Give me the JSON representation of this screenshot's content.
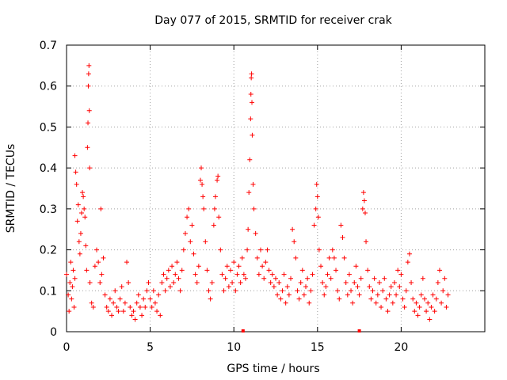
{
  "chart_data": {
    "type": "scatter",
    "title": "Day 077 of 2015, SRMTID for receiver crak",
    "xlabel": "GPS time / hours",
    "ylabel": "SRMTID / TECUs",
    "xlim": [
      0,
      25
    ],
    "ylim": [
      0,
      0.7
    ],
    "grid": true,
    "marker": "+",
    "color": "#ff0000",
    "x_ticks": [
      0,
      5,
      10,
      15,
      20
    ],
    "x_tick_labels": [
      "0",
      "5",
      "10",
      "15",
      "20"
    ],
    "y_ticks": [
      0,
      0.1,
      0.2,
      0.3,
      0.4,
      0.5,
      0.6,
      0.7
    ],
    "y_tick_labels": [
      "0",
      "0.1",
      "0.2",
      "0.3",
      "0.4",
      "0.5",
      "0.6",
      "0.7"
    ],
    "series": [
      {
        "name": "SRMTID",
        "points": [
          [
            0.0,
            0.14
          ],
          [
            0.1,
            0.09
          ],
          [
            0.15,
            0.05
          ],
          [
            0.2,
            0.12
          ],
          [
            0.25,
            0.17
          ],
          [
            0.3,
            0.08
          ],
          [
            0.35,
            0.11
          ],
          [
            0.4,
            0.15
          ],
          [
            0.45,
            0.06
          ],
          [
            0.5,
            0.13
          ],
          [
            0.5,
            0.43
          ],
          [
            0.55,
            0.39
          ],
          [
            0.6,
            0.36
          ],
          [
            0.65,
            0.27
          ],
          [
            0.7,
            0.31
          ],
          [
            0.75,
            0.22
          ],
          [
            0.8,
            0.19
          ],
          [
            0.85,
            0.24
          ],
          [
            0.9,
            0.29
          ],
          [
            0.95,
            0.34
          ],
          [
            1.0,
            0.33
          ],
          [
            1.05,
            0.3
          ],
          [
            1.1,
            0.28
          ],
          [
            1.15,
            0.21
          ],
          [
            1.2,
            0.15
          ],
          [
            1.25,
            0.45
          ],
          [
            1.28,
            0.51
          ],
          [
            1.3,
            0.6
          ],
          [
            1.32,
            0.63
          ],
          [
            1.34,
            0.65
          ],
          [
            1.36,
            0.54
          ],
          [
            1.38,
            0.4
          ],
          [
            1.4,
            0.12
          ],
          [
            1.5,
            0.07
          ],
          [
            1.6,
            0.06
          ],
          [
            1.7,
            0.16
          ],
          [
            1.8,
            0.2
          ],
          [
            1.9,
            0.17
          ],
          [
            2.0,
            0.12
          ],
          [
            2.05,
            0.3
          ],
          [
            2.1,
            0.14
          ],
          [
            2.2,
            0.18
          ],
          [
            2.3,
            0.09
          ],
          [
            2.4,
            0.06
          ],
          [
            2.5,
            0.05
          ],
          [
            2.6,
            0.08
          ],
          [
            2.7,
            0.04
          ],
          [
            2.8,
            0.07
          ],
          [
            2.9,
            0.1
          ],
          [
            3.0,
            0.06
          ],
          [
            3.1,
            0.05
          ],
          [
            3.2,
            0.08
          ],
          [
            3.3,
            0.11
          ],
          [
            3.4,
            0.05
          ],
          [
            3.5,
            0.07
          ],
          [
            3.6,
            0.17
          ],
          [
            3.7,
            0.12
          ],
          [
            3.8,
            0.06
          ],
          [
            3.9,
            0.04
          ],
          [
            4.0,
            0.05
          ],
          [
            4.1,
            0.03
          ],
          [
            4.2,
            0.07
          ],
          [
            4.3,
            0.09
          ],
          [
            4.4,
            0.06
          ],
          [
            4.5,
            0.04
          ],
          [
            4.6,
            0.08
          ],
          [
            4.7,
            0.06
          ],
          [
            4.8,
            0.1
          ],
          [
            4.9,
            0.12
          ],
          [
            5.0,
            0.08
          ],
          [
            5.1,
            0.06
          ],
          [
            5.2,
            0.1
          ],
          [
            5.3,
            0.07
          ],
          [
            5.4,
            0.05
          ],
          [
            5.5,
            0.09
          ],
          [
            5.6,
            0.04
          ],
          [
            5.7,
            0.12
          ],
          [
            5.8,
            0.14
          ],
          [
            5.9,
            0.1
          ],
          [
            6.0,
            0.13
          ],
          [
            6.1,
            0.15
          ],
          [
            6.2,
            0.11
          ],
          [
            6.3,
            0.16
          ],
          [
            6.4,
            0.12
          ],
          [
            6.5,
            0.14
          ],
          [
            6.6,
            0.17
          ],
          [
            6.7,
            0.13
          ],
          [
            6.8,
            0.1
          ],
          [
            6.9,
            0.15
          ],
          [
            7.0,
            0.2
          ],
          [
            7.1,
            0.24
          ],
          [
            7.2,
            0.28
          ],
          [
            7.3,
            0.3
          ],
          [
            7.4,
            0.22
          ],
          [
            7.5,
            0.26
          ],
          [
            7.6,
            0.19
          ],
          [
            7.7,
            0.14
          ],
          [
            7.8,
            0.12
          ],
          [
            7.9,
            0.16
          ],
          [
            8.0,
            0.37
          ],
          [
            8.05,
            0.4
          ],
          [
            8.1,
            0.36
          ],
          [
            8.15,
            0.33
          ],
          [
            8.2,
            0.3
          ],
          [
            8.3,
            0.22
          ],
          [
            8.4,
            0.15
          ],
          [
            8.5,
            0.1
          ],
          [
            8.6,
            0.08
          ],
          [
            8.7,
            0.12
          ],
          [
            8.8,
            0.26
          ],
          [
            8.85,
            0.3
          ],
          [
            8.9,
            0.33
          ],
          [
            9.0,
            0.37
          ],
          [
            9.05,
            0.38
          ],
          [
            9.1,
            0.28
          ],
          [
            9.2,
            0.2
          ],
          [
            9.3,
            0.14
          ],
          [
            9.4,
            0.1
          ],
          [
            9.5,
            0.13
          ],
          [
            9.6,
            0.16
          ],
          [
            9.7,
            0.11
          ],
          [
            9.8,
            0.15
          ],
          [
            9.9,
            0.12
          ],
          [
            10.0,
            0.17
          ],
          [
            10.1,
            0.1
          ],
          [
            10.2,
            0.14
          ],
          [
            10.3,
            0.16
          ],
          [
            10.4,
            0.12
          ],
          [
            10.5,
            0.18
          ],
          [
            10.6,
            0.14
          ],
          [
            10.7,
            0.13
          ],
          [
            10.8,
            0.2
          ],
          [
            10.85,
            0.25
          ],
          [
            10.9,
            0.34
          ],
          [
            10.95,
            0.42
          ],
          [
            11.0,
            0.52
          ],
          [
            11.02,
            0.58
          ],
          [
            11.04,
            0.62
          ],
          [
            11.06,
            0.63
          ],
          [
            11.08,
            0.56
          ],
          [
            11.1,
            0.48
          ],
          [
            11.15,
            0.36
          ],
          [
            11.2,
            0.3
          ],
          [
            11.3,
            0.24
          ],
          [
            11.4,
            0.18
          ],
          [
            11.5,
            0.14
          ],
          [
            11.6,
            0.2
          ],
          [
            11.7,
            0.16
          ],
          [
            11.8,
            0.13
          ],
          [
            11.9,
            0.17
          ],
          [
            12.0,
            0.2
          ],
          [
            12.1,
            0.15
          ],
          [
            12.2,
            0.12
          ],
          [
            12.3,
            0.14
          ],
          [
            12.4,
            0.11
          ],
          [
            12.5,
            0.13
          ],
          [
            12.6,
            0.09
          ],
          [
            12.7,
            0.12
          ],
          [
            12.8,
            0.08
          ],
          [
            12.9,
            0.1
          ],
          [
            13.0,
            0.14
          ],
          [
            13.1,
            0.07
          ],
          [
            13.2,
            0.11
          ],
          [
            13.3,
            0.09
          ],
          [
            13.4,
            0.13
          ],
          [
            13.5,
            0.25
          ],
          [
            13.6,
            0.22
          ],
          [
            13.7,
            0.18
          ],
          [
            13.8,
            0.1
          ],
          [
            13.9,
            0.08
          ],
          [
            14.0,
            0.12
          ],
          [
            14.1,
            0.15
          ],
          [
            14.2,
            0.09
          ],
          [
            14.3,
            0.11
          ],
          [
            14.4,
            0.13
          ],
          [
            14.5,
            0.07
          ],
          [
            14.6,
            0.1
          ],
          [
            14.7,
            0.14
          ],
          [
            14.8,
            0.26
          ],
          [
            14.9,
            0.3
          ],
          [
            14.95,
            0.36
          ],
          [
            15.0,
            0.33
          ],
          [
            15.05,
            0.28
          ],
          [
            15.1,
            0.2
          ],
          [
            15.2,
            0.16
          ],
          [
            15.3,
            0.12
          ],
          [
            15.4,
            0.09
          ],
          [
            15.5,
            0.11
          ],
          [
            15.6,
            0.14
          ],
          [
            15.7,
            0.18
          ],
          [
            15.8,
            0.13
          ],
          [
            15.9,
            0.2
          ],
          [
            16.0,
            0.18
          ],
          [
            16.1,
            0.15
          ],
          [
            16.2,
            0.1
          ],
          [
            16.3,
            0.08
          ],
          [
            16.4,
            0.26
          ],
          [
            16.5,
            0.23
          ],
          [
            16.6,
            0.18
          ],
          [
            16.7,
            0.12
          ],
          [
            16.8,
            0.09
          ],
          [
            16.9,
            0.14
          ],
          [
            17.0,
            0.1
          ],
          [
            17.1,
            0.07
          ],
          [
            17.2,
            0.12
          ],
          [
            17.3,
            0.16
          ],
          [
            17.4,
            0.11
          ],
          [
            17.5,
            0.09
          ],
          [
            17.6,
            0.13
          ],
          [
            17.7,
            0.3
          ],
          [
            17.75,
            0.34
          ],
          [
            17.8,
            0.32
          ],
          [
            17.85,
            0.29
          ],
          [
            17.9,
            0.22
          ],
          [
            18.0,
            0.15
          ],
          [
            18.1,
            0.11
          ],
          [
            18.2,
            0.08
          ],
          [
            18.3,
            0.1
          ],
          [
            18.4,
            0.13
          ],
          [
            18.5,
            0.07
          ],
          [
            18.6,
            0.09
          ],
          [
            18.7,
            0.12
          ],
          [
            18.8,
            0.06
          ],
          [
            18.9,
            0.1
          ],
          [
            19.0,
            0.13
          ],
          [
            19.1,
            0.08
          ],
          [
            19.2,
            0.05
          ],
          [
            19.3,
            0.09
          ],
          [
            19.4,
            0.11
          ],
          [
            19.5,
            0.07
          ],
          [
            19.6,
            0.12
          ],
          [
            19.7,
            0.09
          ],
          [
            19.8,
            0.15
          ],
          [
            19.9,
            0.11
          ],
          [
            20.0,
            0.14
          ],
          [
            20.1,
            0.08
          ],
          [
            20.2,
            0.06
          ],
          [
            20.3,
            0.1
          ],
          [
            20.4,
            0.17
          ],
          [
            20.5,
            0.19
          ],
          [
            20.6,
            0.12
          ],
          [
            20.7,
            0.08
          ],
          [
            20.8,
            0.05
          ],
          [
            20.9,
            0.07
          ],
          [
            21.0,
            0.04
          ],
          [
            21.1,
            0.06
          ],
          [
            21.2,
            0.09
          ],
          [
            21.3,
            0.13
          ],
          [
            21.4,
            0.08
          ],
          [
            21.5,
            0.05
          ],
          [
            21.6,
            0.07
          ],
          [
            21.7,
            0.03
          ],
          [
            21.8,
            0.06
          ],
          [
            21.9,
            0.09
          ],
          [
            22.0,
            0.05
          ],
          [
            22.1,
            0.08
          ],
          [
            22.2,
            0.12
          ],
          [
            22.3,
            0.15
          ],
          [
            22.4,
            0.07
          ],
          [
            22.5,
            0.1
          ],
          [
            22.6,
            0.13
          ],
          [
            22.7,
            0.06
          ],
          [
            22.8,
            0.09
          ]
        ]
      }
    ],
    "axis_markers": [
      10.55,
      17.5
    ]
  }
}
